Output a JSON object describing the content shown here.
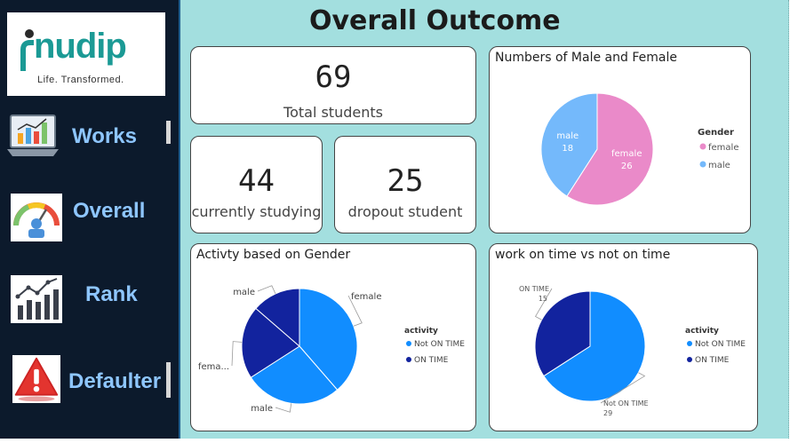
{
  "brand": {
    "name": "nudip",
    "tagline": "Life. Transformed."
  },
  "nav": [
    {
      "label": "Works",
      "icon": "laptop-chart-icon"
    },
    {
      "label": "Overall",
      "icon": "gauge-icon"
    },
    {
      "label": "Rank",
      "icon": "rank-chart-icon"
    },
    {
      "label": "Defaulter",
      "icon": "warning-icon"
    }
  ],
  "page_title": "Overall Outcome",
  "kpis": {
    "total": {
      "value": "69",
      "label": "Total students"
    },
    "studying": {
      "value": "44",
      "label": "currently studying"
    },
    "dropout": {
      "value": "25",
      "label": "dropout student"
    }
  },
  "colors": {
    "female": "#ea8ac9",
    "male": "#74b9fb",
    "not_on_time": "#118dff",
    "on_time": "#12239e",
    "dashboard_bg": "#a3dfdf",
    "sidebar_bg": "#0c1a2c",
    "nav_text": "#8ec6ff",
    "brand": "#1b9a95"
  },
  "chart_data": [
    {
      "type": "pie",
      "title": "Numbers of Male and Female",
      "legend_title": "Gender",
      "legend_position": "right",
      "slices": [
        {
          "name": "female",
          "value": 26,
          "label": "female",
          "value_label": "26"
        },
        {
          "name": "male",
          "value": 18,
          "label": "male",
          "value_label": "18"
        }
      ]
    },
    {
      "type": "pie",
      "title": "Activty based on Gender",
      "legend_title": "activity",
      "legend_position": "right",
      "legend": [
        "Not ON TIME",
        "ON TIME"
      ],
      "slices": [
        {
          "gender": "female",
          "activity": "Not ON TIME",
          "value": 17,
          "label": "female"
        },
        {
          "gender": "male",
          "activity": "Not ON TIME",
          "value": 12,
          "label": "male"
        },
        {
          "gender": "female",
          "activity": "ON TIME",
          "value": 9,
          "label": "fema..."
        },
        {
          "gender": "male",
          "activity": "ON TIME",
          "value": 6,
          "label": "male"
        }
      ]
    },
    {
      "type": "pie",
      "title": "work on time vs not on time",
      "legend_title": "activity",
      "legend_position": "right",
      "slices": [
        {
          "name": "Not ON TIME",
          "value": 29,
          "label": "Not ON TIME",
          "value_label": "29"
        },
        {
          "name": "ON TIME",
          "value": 15,
          "label": "ON TIME",
          "value_label": "15"
        }
      ]
    }
  ]
}
